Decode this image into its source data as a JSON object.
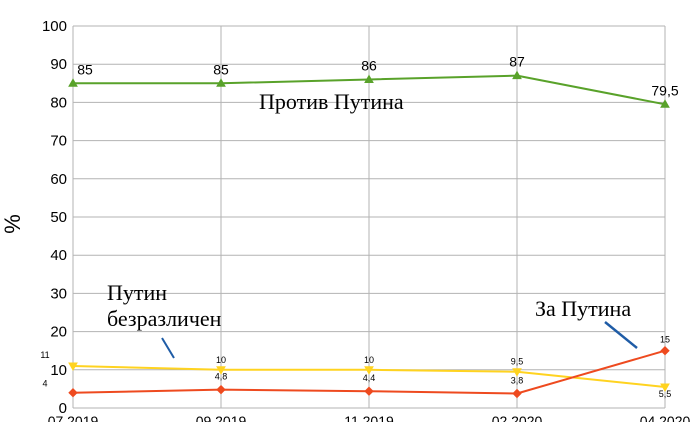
{
  "chart_data": {
    "type": "line",
    "title": "",
    "xlabel": "",
    "ylabel": "%",
    "ylim": [
      0,
      100
    ],
    "yticks": [
      0,
      10,
      20,
      30,
      40,
      50,
      60,
      70,
      80,
      90,
      100
    ],
    "categories": [
      "07.2019",
      "09.2019",
      "11.2019",
      "02.2020",
      "04.2020"
    ],
    "grid": true,
    "legend": "none",
    "series": [
      {
        "name": "Против Путина",
        "color": "#59a22a",
        "marker": "triangle-up",
        "values": [
          85,
          85,
          86,
          87,
          79.5
        ],
        "labels": [
          "85",
          "85",
          "86",
          "87",
          "79,5"
        ]
      },
      {
        "name": "Путин безразличен",
        "color": "#ffd320",
        "marker": "triangle-down",
        "values": [
          11,
          10,
          10,
          9.5,
          5.5
        ],
        "labels": [
          "11",
          "10",
          "10",
          "9,5",
          "5,5"
        ]
      },
      {
        "name": "За Путина",
        "color": "#ee4a1f",
        "marker": "diamond",
        "values": [
          4,
          4.8,
          4.4,
          3.8,
          15
        ],
        "labels": [
          "4",
          "4,8",
          "4,4",
          "3,8",
          "15"
        ]
      }
    ],
    "annotations": [
      {
        "lines": [
          "Против Путина"
        ],
        "series": 0
      },
      {
        "lines": [
          "Путин",
          "безразличен"
        ],
        "series": 1
      },
      {
        "lines": [
          "За Путина"
        ],
        "series": 2
      }
    ]
  }
}
